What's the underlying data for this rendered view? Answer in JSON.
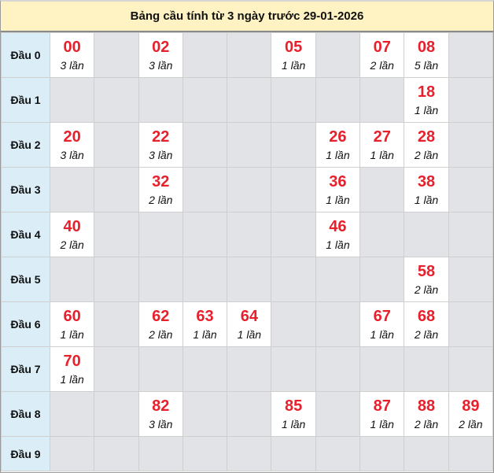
{
  "title": "Bảng cầu tính từ 3 ngày trước 29-01-2026",
  "colors": {
    "number": "#e8202c",
    "header_bg": "#fff3c4",
    "row_label_bg": "#dbeef8",
    "empty_cell": "#e2e3e6"
  },
  "rows": [
    {
      "label": "Đầu 0",
      "cells": [
        {
          "num": "00",
          "count": "3 lần"
        },
        null,
        {
          "num": "02",
          "count": "3 lần"
        },
        null,
        null,
        {
          "num": "05",
          "count": "1 lần"
        },
        null,
        {
          "num": "07",
          "count": "2 lần"
        },
        {
          "num": "08",
          "count": "5 lần"
        },
        null
      ]
    },
    {
      "label": "Đầu 1",
      "cells": [
        null,
        null,
        null,
        null,
        null,
        null,
        null,
        null,
        {
          "num": "18",
          "count": "1 lần"
        },
        null
      ]
    },
    {
      "label": "Đầu 2",
      "cells": [
        {
          "num": "20",
          "count": "3 lần"
        },
        null,
        {
          "num": "22",
          "count": "3 lần"
        },
        null,
        null,
        null,
        {
          "num": "26",
          "count": "1 lần"
        },
        {
          "num": "27",
          "count": "1 lần"
        },
        {
          "num": "28",
          "count": "2 lần"
        },
        null
      ]
    },
    {
      "label": "Đầu 3",
      "cells": [
        null,
        null,
        {
          "num": "32",
          "count": "2 lần"
        },
        null,
        null,
        null,
        {
          "num": "36",
          "count": "1 lần"
        },
        null,
        {
          "num": "38",
          "count": "1 lần"
        },
        null
      ]
    },
    {
      "label": "Đầu 4",
      "cells": [
        {
          "num": "40",
          "count": "2 lần"
        },
        null,
        null,
        null,
        null,
        null,
        {
          "num": "46",
          "count": "1 lần"
        },
        null,
        null,
        null
      ]
    },
    {
      "label": "Đầu 5",
      "cells": [
        null,
        null,
        null,
        null,
        null,
        null,
        null,
        null,
        {
          "num": "58",
          "count": "2 lần"
        },
        null
      ]
    },
    {
      "label": "Đầu 6",
      "cells": [
        {
          "num": "60",
          "count": "1 lần"
        },
        null,
        {
          "num": "62",
          "count": "2 lần"
        },
        {
          "num": "63",
          "count": "1 lần"
        },
        {
          "num": "64",
          "count": "1 lần"
        },
        null,
        null,
        {
          "num": "67",
          "count": "1 lần"
        },
        {
          "num": "68",
          "count": "2 lần"
        },
        null
      ]
    },
    {
      "label": "Đầu 7",
      "cells": [
        {
          "num": "70",
          "count": "1 lần"
        },
        null,
        null,
        null,
        null,
        null,
        null,
        null,
        null,
        null
      ]
    },
    {
      "label": "Đầu 8",
      "cells": [
        null,
        null,
        {
          "num": "82",
          "count": "3 lần"
        },
        null,
        null,
        {
          "num": "85",
          "count": "1 lần"
        },
        null,
        {
          "num": "87",
          "count": "1 lần"
        },
        {
          "num": "88",
          "count": "2 lần"
        },
        {
          "num": "89",
          "count": "2 lần"
        }
      ]
    },
    {
      "label": "Đầu 9",
      "cells": [
        null,
        null,
        null,
        null,
        null,
        null,
        null,
        null,
        null,
        null
      ]
    }
  ]
}
